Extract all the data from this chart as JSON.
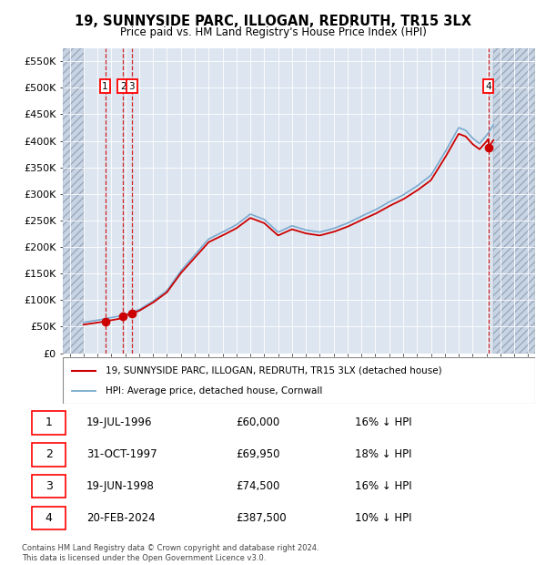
{
  "title": "19, SUNNYSIDE PARC, ILLOGAN, REDRUTH, TR15 3LX",
  "subtitle": "Price paid vs. HM Land Registry's House Price Index (HPI)",
  "xlim": [
    1993.5,
    2027.5
  ],
  "ylim": [
    0,
    575000
  ],
  "yticks": [
    0,
    50000,
    100000,
    150000,
    200000,
    250000,
    300000,
    350000,
    400000,
    450000,
    500000,
    550000
  ],
  "ytick_labels": [
    "£0",
    "£50K",
    "£100K",
    "£150K",
    "£200K",
    "£250K",
    "£300K",
    "£350K",
    "£400K",
    "£450K",
    "£500K",
    "£550K"
  ],
  "sale_dates": [
    1996.55,
    1997.83,
    1998.46,
    2024.13
  ],
  "sale_prices": [
    60000,
    69950,
    74500,
    387500
  ],
  "sale_labels": [
    "1",
    "2",
    "3",
    "4"
  ],
  "property_line_color": "#cc0000",
  "hpi_line_color": "#7aaad0",
  "background_plot": "#dde6f0",
  "background_hatch_color": "#c8d4e4",
  "grid_color": "#ffffff",
  "legend_label_property": "19, SUNNYSIDE PARC, ILLOGAN, REDRUTH, TR15 3LX (detached house)",
  "legend_label_hpi": "HPI: Average price, detached house, Cornwall",
  "table_rows": [
    [
      "1",
      "19-JUL-1996",
      "£60,000",
      "16% ↓ HPI"
    ],
    [
      "2",
      "31-OCT-1997",
      "£69,950",
      "18% ↓ HPI"
    ],
    [
      "3",
      "19-JUN-1998",
      "£74,500",
      "16% ↓ HPI"
    ],
    [
      "4",
      "20-FEB-2024",
      "£387,500",
      "10% ↓ HPI"
    ]
  ],
  "footnote": "Contains HM Land Registry data © Crown copyright and database right 2024.\nThis data is licensed under the Open Government Licence v3.0.",
  "data_start_year": 1995.0,
  "data_end_year": 2024.5,
  "hpi_keypoints": [
    [
      1995.0,
      58000
    ],
    [
      1996.0,
      62000
    ],
    [
      1997.0,
      67000
    ],
    [
      1998.0,
      72000
    ],
    [
      1999.0,
      82000
    ],
    [
      2000.0,
      98000
    ],
    [
      2001.0,
      118000
    ],
    [
      2002.0,
      155000
    ],
    [
      2003.0,
      185000
    ],
    [
      2004.0,
      215000
    ],
    [
      2005.0,
      228000
    ],
    [
      2006.0,
      242000
    ],
    [
      2007.0,
      262000
    ],
    [
      2008.0,
      252000
    ],
    [
      2009.0,
      228000
    ],
    [
      2010.0,
      240000
    ],
    [
      2011.0,
      232000
    ],
    [
      2012.0,
      228000
    ],
    [
      2013.0,
      235000
    ],
    [
      2014.0,
      245000
    ],
    [
      2015.0,
      258000
    ],
    [
      2016.0,
      270000
    ],
    [
      2017.0,
      285000
    ],
    [
      2018.0,
      298000
    ],
    [
      2019.0,
      315000
    ],
    [
      2020.0,
      335000
    ],
    [
      2021.0,
      378000
    ],
    [
      2022.0,
      425000
    ],
    [
      2022.5,
      420000
    ],
    [
      2023.0,
      405000
    ],
    [
      2023.5,
      395000
    ],
    [
      2024.0,
      410000
    ],
    [
      2024.5,
      430000
    ]
  ]
}
